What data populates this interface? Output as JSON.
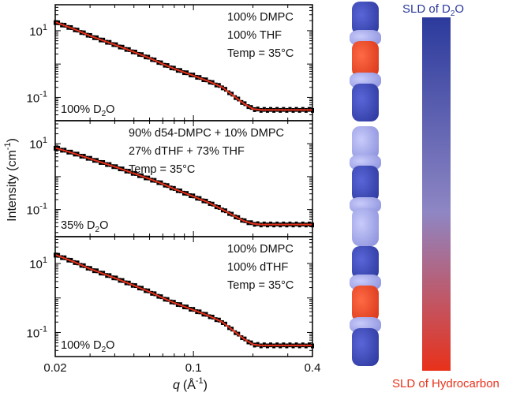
{
  "chart_data": {
    "type": "scatter",
    "layout": "three stacked log-log panels sharing one x axis",
    "xlabel_symbol": "q",
    "xlabel_unit": "(Å",
    "xlabel_unit_sup": "-1",
    "xlabel_close": ")",
    "ylabel": "Intensity (cm",
    "ylabel_sup": "-1",
    "ylabel_close": ")",
    "x_scale": "log",
    "y_scale": "log",
    "xlim": [
      0.02,
      0.4
    ],
    "x_ticks": [
      {
        "value": 0.02,
        "label": "0.02"
      },
      {
        "value": 0.1,
        "label": "0.1"
      },
      {
        "value": 0.4,
        "label": "0.4"
      }
    ],
    "series_styles": {
      "data": {
        "marker": "tick",
        "color": "#000000"
      },
      "fit": {
        "line": "solid",
        "color": "#e8311a"
      }
    },
    "panels": [
      {
        "ylim": [
          0.02,
          60
        ],
        "y_ticks": [
          {
            "value": 10,
            "base": "10",
            "exp": "1"
          },
          {
            "value": 0.1,
            "base": "10",
            "exp": "-1"
          }
        ],
        "annotation": [
          "100% DMPC",
          "100% THF",
          "Temp = 35°C"
        ],
        "d2o_prefix": "100% D",
        "d2o_sub": "2",
        "d2o_suffix": "O",
        "x": [
          0.02,
          0.025,
          0.03,
          0.04,
          0.05,
          0.06,
          0.07,
          0.08,
          0.1,
          0.12,
          0.14,
          0.16,
          0.18,
          0.2,
          0.22,
          0.25,
          0.3,
          0.35,
          0.4
        ],
        "y": [
          18,
          11,
          7,
          3.8,
          2.3,
          1.5,
          1.0,
          0.72,
          0.45,
          0.3,
          0.2,
          0.11,
          0.065,
          0.045,
          0.042,
          0.042,
          0.042,
          0.042,
          0.042
        ]
      },
      {
        "ylim": [
          0.015,
          50
        ],
        "y_ticks": [
          {
            "value": 10,
            "base": "10",
            "exp": "1"
          },
          {
            "value": 0.1,
            "base": "10",
            "exp": "-1"
          }
        ],
        "annotation": [
          "90% d54-DMPC + 10% DMPC",
          "27% dTHF + 73% THF",
          "Temp = 35°C"
        ],
        "d2o_prefix": "35% D",
        "d2o_sub": "2",
        "d2o_suffix": "O",
        "x": [
          0.02,
          0.025,
          0.03,
          0.04,
          0.05,
          0.06,
          0.07,
          0.08,
          0.1,
          0.12,
          0.14,
          0.16,
          0.18,
          0.2,
          0.22,
          0.25,
          0.3,
          0.35,
          0.4
        ],
        "y": [
          7.5,
          5,
          3.5,
          2.0,
          1.25,
          0.85,
          0.6,
          0.42,
          0.25,
          0.16,
          0.1,
          0.065,
          0.045,
          0.037,
          0.035,
          0.035,
          0.035,
          0.035,
          0.035
        ]
      },
      {
        "ylim": [
          0.02,
          60
        ],
        "y_ticks": [
          {
            "value": 10,
            "base": "10",
            "exp": "1"
          },
          {
            "value": 0.1,
            "base": "10",
            "exp": "-1"
          }
        ],
        "annotation": [
          "100% DMPC",
          "100% dTHF",
          "Temp = 35°C"
        ],
        "d2o_prefix": "100% D",
        "d2o_sub": "2",
        "d2o_suffix": "O",
        "x": [
          0.02,
          0.025,
          0.03,
          0.04,
          0.05,
          0.06,
          0.07,
          0.08,
          0.1,
          0.12,
          0.14,
          0.16,
          0.18,
          0.2,
          0.22,
          0.25,
          0.3,
          0.35,
          0.4
        ],
        "y": [
          18,
          11,
          7,
          3.8,
          2.3,
          1.5,
          1.0,
          0.72,
          0.45,
          0.3,
          0.2,
          0.11,
          0.065,
          0.045,
          0.042,
          0.042,
          0.042,
          0.042,
          0.042
        ]
      }
    ],
    "color_scale": {
      "top_prefix": "SLD of D",
      "top_sub": "2",
      "top_suffix": "O",
      "bottom_label": "SLD of Hydrocarbon",
      "top_color": "#2b3a9c",
      "mid_color": "#8e86c4",
      "bottom_color": "#e8311a"
    },
    "structure_colors": {
      "blue": "#3a47b5",
      "lavender": "#a9acf0",
      "orange": "#ee4a2a"
    }
  }
}
